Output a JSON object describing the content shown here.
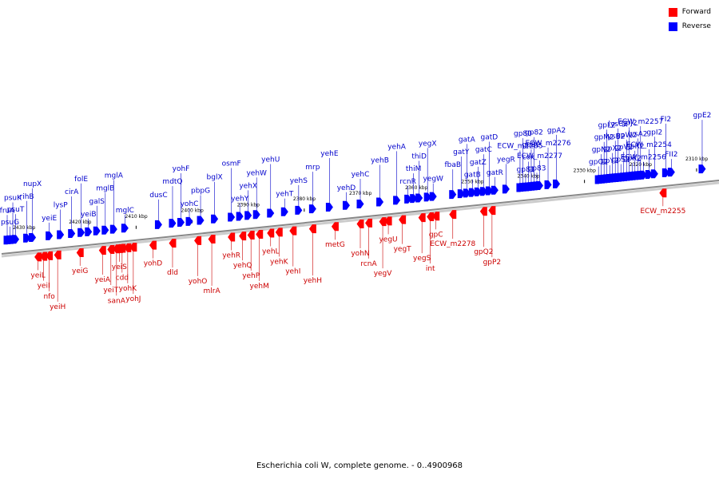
{
  "caption": "Escherichia coli W, complete genome. - 0..4900968",
  "legend": [
    {
      "label": "Forward",
      "color": "#ff0000"
    },
    {
      "label": "Reverse",
      "color": "#0000ff"
    }
  ],
  "colors": {
    "forward": "#ff0000",
    "reverse": "#0000ff",
    "forward_label": "#cc0000",
    "reverse_label": "#0000cc",
    "axis": "#888888"
  },
  "axis": {
    "from_kbp": 2434,
    "to_kbp": 2306,
    "ticks": [
      "2430 kbp",
      "2420 kbp",
      "2410 kbp",
      "2400 kbp",
      "2390 kbp",
      "2380 kbp",
      "2370 kbp",
      "2360 kbp",
      "2350 kbp",
      "2340 kbp",
      "2330 kbp",
      "2320 kbp",
      "2310 kbp"
    ],
    "tick_values_kbp": [
      2430,
      2420,
      2410,
      2400,
      2390,
      2380,
      2370,
      2360,
      2350,
      2340,
      2330,
      2320,
      2310
    ]
  },
  "reverse_genes": [
    {
      "name": "psuG",
      "kbp": 2432.5
    },
    {
      "name": "psuT",
      "kbp": 2431.5
    },
    {
      "name": "rihB",
      "kbp": 2429.5
    },
    {
      "name": "nupX",
      "kbp": 2428.5
    },
    {
      "name": "yeiE",
      "kbp": 2425.5
    },
    {
      "name": "lysP",
      "kbp": 2423.5
    },
    {
      "name": "cirA",
      "kbp": 2421.5
    },
    {
      "name": "folE",
      "kbp": 2419.8
    },
    {
      "name": "yeiB",
      "kbp": 2418.5
    },
    {
      "name": "galS",
      "kbp": 2417
    },
    {
      "name": "mglB",
      "kbp": 2415.5
    },
    {
      "name": "mglA",
      "kbp": 2414
    },
    {
      "name": "mglC",
      "kbp": 2412
    },
    {
      "name": "dusC",
      "kbp": 2406
    },
    {
      "name": "mdtQ",
      "kbp": 2403.5
    },
    {
      "name": "yohF",
      "kbp": 2402
    },
    {
      "name": "yohC",
      "kbp": 2400.5
    },
    {
      "name": "pbpG",
      "kbp": 2398.5
    },
    {
      "name": "bglX",
      "kbp": 2396
    },
    {
      "name": "osmF",
      "kbp": 2393
    },
    {
      "name": "yehY",
      "kbp": 2391.5
    },
    {
      "name": "yehX",
      "kbp": 2390
    },
    {
      "name": "yehW",
      "kbp": 2388.5
    },
    {
      "name": "yehU",
      "kbp": 2386
    },
    {
      "name": "yehT",
      "kbp": 2383.5
    },
    {
      "name": "yehS",
      "kbp": 2381
    },
    {
      "name": "mrp",
      "kbp": 2378.5
    },
    {
      "name": "yehE",
      "kbp": 2375.5
    },
    {
      "name": "yehD",
      "kbp": 2372.5
    },
    {
      "name": "yehC",
      "kbp": 2370
    },
    {
      "name": "yehB",
      "kbp": 2366.5
    },
    {
      "name": "yehA",
      "kbp": 2363.5
    },
    {
      "name": "rcnR",
      "kbp": 2361.5
    },
    {
      "name": "thiM",
      "kbp": 2360.5
    },
    {
      "name": "thiD",
      "kbp": 2359.5
    },
    {
      "name": "yegX",
      "kbp": 2358
    },
    {
      "name": "yegW",
      "kbp": 2357
    },
    {
      "name": "fbaB",
      "kbp": 2353.5
    },
    {
      "name": "gatY",
      "kbp": 2352
    },
    {
      "name": "gatA",
      "kbp": 2351
    },
    {
      "name": "gatB",
      "kbp": 2350
    },
    {
      "name": "gatZ",
      "kbp": 2349
    },
    {
      "name": "gatC",
      "kbp": 2348
    },
    {
      "name": "gatD",
      "kbp": 2347
    },
    {
      "name": "gatR",
      "kbp": 2346
    },
    {
      "name": "yegR",
      "kbp": 2344
    },
    {
      "name": "ECW_m2285",
      "kbp": 2341.5
    },
    {
      "name": "gp80",
      "kbp": 2341
    },
    {
      "name": "gp81",
      "kbp": 2340.5
    },
    {
      "name": "cox",
      "kbp": 2340
    },
    {
      "name": "gpB2",
      "kbp": 2339.5
    },
    {
      "name": "gp82",
      "kbp": 2339
    },
    {
      "name": "gp83",
      "kbp": 2338.5
    },
    {
      "name": "ECW_m2277",
      "kbp": 2338
    },
    {
      "name": "ECW_m2276",
      "kbp": 2336.5
    },
    {
      "name": "gpA2",
      "kbp": 2335
    },
    {
      "name": "gpO2",
      "kbp": 2327.5
    },
    {
      "name": "gpN2",
      "kbp": 2327
    },
    {
      "name": "gpM2",
      "kbp": 2326.5
    },
    {
      "name": "gpL2",
      "kbp": 2326
    },
    {
      "name": "gpY2",
      "kbp": 2325.5
    },
    {
      "name": "gpX2",
      "kbp": 2325
    },
    {
      "name": "lysB2",
      "kbp": 2324.5
    },
    {
      "name": "lysC2",
      "kbp": 2324
    },
    {
      "name": "gpS2",
      "kbp": 2323.5
    },
    {
      "name": "gpV2",
      "kbp": 2323
    },
    {
      "name": "gpW2",
      "kbp": 2322.5
    },
    {
      "name": "gpJ2",
      "kbp": 2322
    },
    {
      "name": "gpK2",
      "kbp": 2321.5
    },
    {
      "name": "gpR2",
      "kbp": 2321
    },
    {
      "name": "lysA2",
      "kbp": 2320.5
    },
    {
      "name": "ECW_m2257",
      "kbp": 2320
    },
    {
      "name": "ECW_m2256",
      "kbp": 2319.5
    },
    {
      "name": "ECW_m2254",
      "kbp": 2318.5
    },
    {
      "name": "gpI2",
      "kbp": 2317.5
    },
    {
      "name": "FI2",
      "kbp": 2315.5
    },
    {
      "name": "FII2",
      "kbp": 2314.5
    },
    {
      "name": "fruA",
      "kbp": 2433
    },
    {
      "name": "psuK",
      "kbp": 2432
    },
    {
      "name": "gpE2",
      "kbp": 2309
    }
  ],
  "forward_genes": [
    {
      "name": "yeiL",
      "kbp": 2427.5
    },
    {
      "name": "yeiI",
      "kbp": 2426.5
    },
    {
      "name": "nfo",
      "kbp": 2425.5
    },
    {
      "name": "yeiH",
      "kbp": 2424
    },
    {
      "name": "yeiG",
      "kbp": 2420
    },
    {
      "name": "yeiA",
      "kbp": 2416
    },
    {
      "name": "yeiT",
      "kbp": 2414.5
    },
    {
      "name": "sanA",
      "kbp": 2413.5
    },
    {
      "name": "yeiS",
      "kbp": 2413
    },
    {
      "name": "cdd",
      "kbp": 2412.5
    },
    {
      "name": "yohK",
      "kbp": 2411.5
    },
    {
      "name": "yohJ",
      "kbp": 2410.5
    },
    {
      "name": "yohD",
      "kbp": 2407
    },
    {
      "name": "dld",
      "kbp": 2403.5
    },
    {
      "name": "yohO",
      "kbp": 2399
    },
    {
      "name": "mlrA",
      "kbp": 2396.5
    },
    {
      "name": "yehR",
      "kbp": 2393
    },
    {
      "name": "yehQ",
      "kbp": 2391
    },
    {
      "name": "yehP",
      "kbp": 2389.5
    },
    {
      "name": "yehM",
      "kbp": 2388
    },
    {
      "name": "yehL",
      "kbp": 2386
    },
    {
      "name": "yehK",
      "kbp": 2384.5
    },
    {
      "name": "yehI",
      "kbp": 2382
    },
    {
      "name": "yehH",
      "kbp": 2378.5
    },
    {
      "name": "metG",
      "kbp": 2374.5
    },
    {
      "name": "yohN",
      "kbp": 2370
    },
    {
      "name": "rcnA",
      "kbp": 2368.5
    },
    {
      "name": "yegV",
      "kbp": 2366
    },
    {
      "name": "yegU",
      "kbp": 2365
    },
    {
      "name": "yegT",
      "kbp": 2362.5
    },
    {
      "name": "yegS",
      "kbp": 2359
    },
    {
      "name": "int",
      "kbp": 2357.5
    },
    {
      "name": "gpC",
      "kbp": 2356.5
    },
    {
      "name": "ECW_m2278",
      "kbp": 2353.5
    },
    {
      "name": "gpQ2",
      "kbp": 2348
    },
    {
      "name": "gpP2",
      "kbp": 2346.5
    },
    {
      "name": "ECW_m2255",
      "kbp": 2316
    }
  ]
}
